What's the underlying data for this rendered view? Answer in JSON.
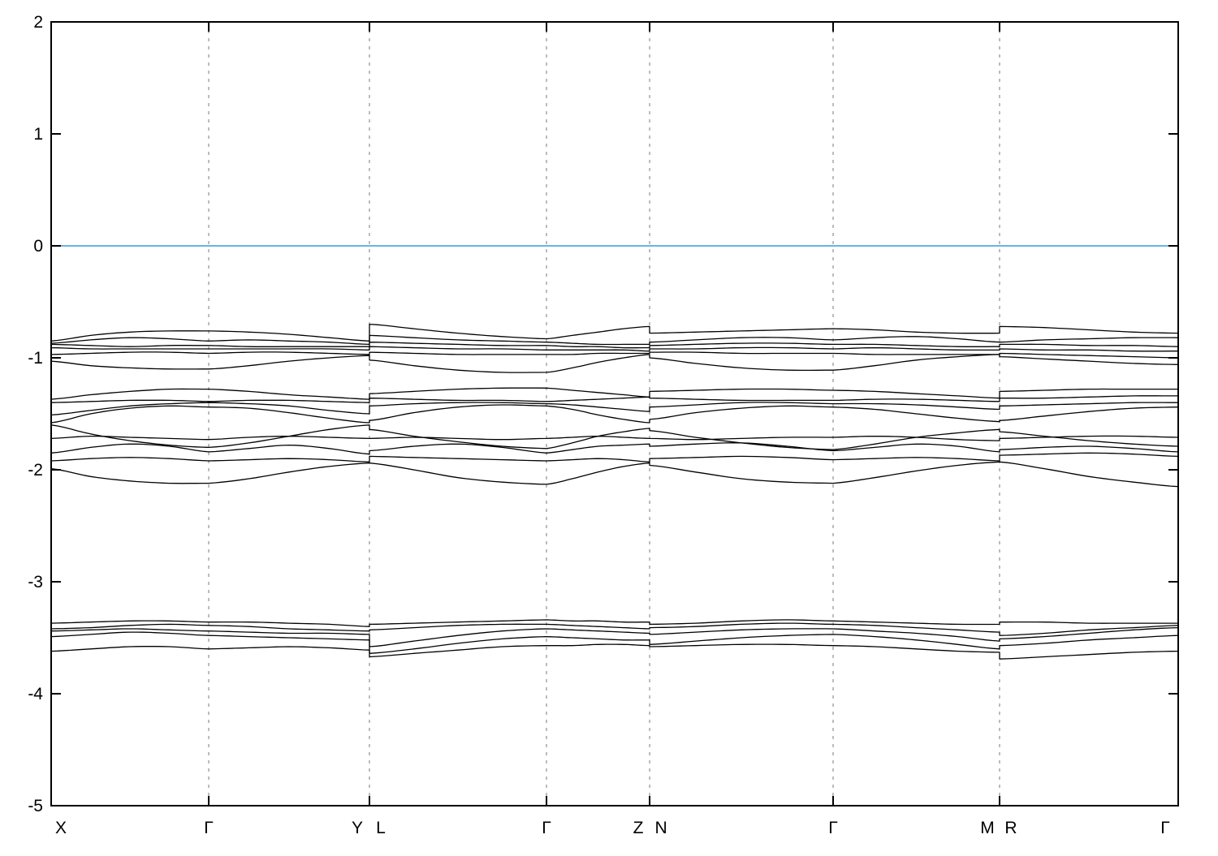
{
  "chart_data": {
    "type": "line",
    "title": "",
    "xlabel": "",
    "ylabel": "",
    "ylim": [
      -5,
      2
    ],
    "yticks": [
      2,
      1,
      0,
      -1,
      -2,
      -3,
      -4,
      -5
    ],
    "grid": "vertical-dashed-at-kpoints",
    "legend": "none",
    "fermi_level": 0,
    "colors": {
      "fermi_line": "#56aadc",
      "band_line": "#000000",
      "grid_line": "#909090",
      "axis": "#000000",
      "background": "#ffffff"
    },
    "node_fracs": [
      0,
      0.1398,
      0.2824,
      0.4395,
      0.531,
      0.6938,
      0.8415,
      1.0
    ],
    "gridline_nodes": [
      1,
      2,
      3,
      4,
      5,
      6
    ],
    "kpoint_labels": [
      {
        "label": "X",
        "node": 0,
        "dx": 12
      },
      {
        "label": "Γ",
        "node": 1,
        "dx": 0
      },
      {
        "label": "Y",
        "node": 2,
        "dx": -15
      },
      {
        "label": "L",
        "node": 2,
        "dx": 14
      },
      {
        "label": "Γ",
        "node": 3,
        "dx": 0
      },
      {
        "label": "Z",
        "node": 4,
        "dx": -14
      },
      {
        "label": "N",
        "node": 4,
        "dx": 14
      },
      {
        "label": "Γ",
        "node": 5,
        "dx": 0
      },
      {
        "label": "M",
        "node": 6,
        "dx": -15
      },
      {
        "label": "R",
        "node": 6,
        "dx": 14
      },
      {
        "label": "Γ",
        "node": 7,
        "dx": -16
      }
    ],
    "bands": [
      {
        "name": "band-01",
        "segments": [
          [
            -0.85,
            -0.8,
            -0.77,
            -0.76,
            -0.76
          ],
          [
            -0.76,
            -0.77,
            -0.79,
            -0.82,
            -0.85
          ],
          [
            -0.7,
            -0.74,
            -0.78,
            -0.81,
            -0.83
          ],
          [
            -0.83,
            -0.8,
            -0.77,
            -0.74,
            -0.72
          ],
          [
            -0.78,
            -0.77,
            -0.76,
            -0.75,
            -0.74
          ],
          [
            -0.74,
            -0.75,
            -0.77,
            -0.78,
            -0.78
          ],
          [
            -0.72,
            -0.73,
            -0.75,
            -0.77,
            -0.78
          ]
        ]
      },
      {
        "name": "band-02",
        "segments": [
          [
            -0.87,
            -0.84,
            -0.82,
            -0.83,
            -0.85
          ],
          [
            -0.85,
            -0.84,
            -0.85,
            -0.86,
            -0.88
          ],
          [
            -0.8,
            -0.82,
            -0.84,
            -0.85,
            -0.86
          ],
          [
            -0.86,
            -0.87,
            -0.88,
            -0.88,
            -0.88
          ],
          [
            -0.86,
            -0.84,
            -0.82,
            -0.82,
            -0.84
          ],
          [
            -0.84,
            -0.82,
            -0.81,
            -0.83,
            -0.86
          ],
          [
            -0.86,
            -0.84,
            -0.83,
            -0.82,
            -0.82
          ]
        ]
      },
      {
        "name": "band-03",
        "segments": [
          [
            -0.88,
            -0.89,
            -0.9,
            -0.89,
            -0.89
          ],
          [
            -0.89,
            -0.9,
            -0.9,
            -0.9,
            -0.9
          ],
          [
            -0.86,
            -0.87,
            -0.88,
            -0.89,
            -0.89
          ],
          [
            -0.89,
            -0.9,
            -0.9,
            -0.91,
            -0.91
          ],
          [
            -0.89,
            -0.88,
            -0.87,
            -0.87,
            -0.88
          ],
          [
            -0.88,
            -0.88,
            -0.89,
            -0.9,
            -0.9
          ],
          [
            -0.88,
            -0.88,
            -0.89,
            -0.89,
            -0.9
          ]
        ]
      },
      {
        "name": "band-04",
        "segments": [
          [
            -0.91,
            -0.92,
            -0.92,
            -0.92,
            -0.92
          ],
          [
            -0.92,
            -0.92,
            -0.92,
            -0.92,
            -0.93
          ],
          [
            -0.9,
            -0.91,
            -0.92,
            -0.92,
            -0.93
          ],
          [
            -0.93,
            -0.93,
            -0.93,
            -0.93,
            -0.94
          ],
          [
            -0.92,
            -0.92,
            -0.91,
            -0.91,
            -0.92
          ],
          [
            -0.92,
            -0.91,
            -0.92,
            -0.93,
            -0.93
          ],
          [
            -0.92,
            -0.93,
            -0.93,
            -0.94,
            -0.94
          ]
        ]
      },
      {
        "name": "band-05",
        "segments": [
          [
            -0.97,
            -0.96,
            -0.95,
            -0.95,
            -0.96
          ],
          [
            -0.96,
            -0.95,
            -0.95,
            -0.96,
            -0.97
          ],
          [
            -0.95,
            -0.96,
            -0.97,
            -0.97,
            -0.97
          ],
          [
            -0.97,
            -0.97,
            -0.96,
            -0.96,
            -0.96
          ],
          [
            -0.95,
            -0.95,
            -0.96,
            -0.96,
            -0.96
          ],
          [
            -0.96,
            -0.97,
            -0.97,
            -0.97,
            -0.97
          ],
          [
            -0.96,
            -0.97,
            -0.98,
            -0.99,
            -1.0
          ]
        ]
      },
      {
        "name": "band-06",
        "segments": [
          [
            -1.03,
            -1.07,
            -1.09,
            -1.1,
            -1.1
          ],
          [
            -1.1,
            -1.07,
            -1.03,
            -1.0,
            -0.98
          ],
          [
            -1.02,
            -1.07,
            -1.11,
            -1.13,
            -1.13
          ],
          [
            -1.13,
            -1.09,
            -1.04,
            -1.0,
            -0.97
          ],
          [
            -1.0,
            -1.05,
            -1.09,
            -1.11,
            -1.11
          ],
          [
            -1.11,
            -1.07,
            -1.02,
            -0.99,
            -0.97
          ],
          [
            -0.99,
            -1.01,
            -1.03,
            -1.05,
            -1.06
          ]
        ]
      },
      {
        "name": "band-07",
        "segments": [
          [
            -1.37,
            -1.33,
            -1.3,
            -1.28,
            -1.28
          ],
          [
            -1.28,
            -1.3,
            -1.33,
            -1.35,
            -1.37
          ],
          [
            -1.32,
            -1.3,
            -1.28,
            -1.27,
            -1.27
          ],
          [
            -1.27,
            -1.29,
            -1.31,
            -1.33,
            -1.35
          ],
          [
            -1.3,
            -1.29,
            -1.28,
            -1.28,
            -1.29
          ],
          [
            -1.29,
            -1.3,
            -1.32,
            -1.34,
            -1.36
          ],
          [
            -1.3,
            -1.29,
            -1.28,
            -1.28,
            -1.28
          ]
        ]
      },
      {
        "name": "band-08",
        "segments": [
          [
            -1.4,
            -1.39,
            -1.38,
            -1.38,
            -1.39
          ],
          [
            -1.39,
            -1.38,
            -1.38,
            -1.39,
            -1.4
          ],
          [
            -1.36,
            -1.37,
            -1.38,
            -1.38,
            -1.39
          ],
          [
            -1.39,
            -1.38,
            -1.37,
            -1.36,
            -1.35
          ],
          [
            -1.36,
            -1.37,
            -1.38,
            -1.38,
            -1.38
          ],
          [
            -1.38,
            -1.37,
            -1.37,
            -1.38,
            -1.39
          ],
          [
            -1.36,
            -1.36,
            -1.35,
            -1.34,
            -1.34
          ]
        ]
      },
      {
        "name": "band-09",
        "segments": [
          [
            -1.51,
            -1.47,
            -1.43,
            -1.41,
            -1.4
          ],
          [
            -1.4,
            -1.41,
            -1.43,
            -1.47,
            -1.5
          ],
          [
            -1.43,
            -1.41,
            -1.4,
            -1.4,
            -1.41
          ],
          [
            -1.41,
            -1.42,
            -1.44,
            -1.46,
            -1.48
          ],
          [
            -1.44,
            -1.42,
            -1.4,
            -1.4,
            -1.41
          ],
          [
            -1.41,
            -1.41,
            -1.42,
            -1.44,
            -1.46
          ],
          [
            -1.43,
            -1.42,
            -1.41,
            -1.4,
            -1.4
          ]
        ]
      },
      {
        "name": "band-10",
        "segments": [
          [
            -1.58,
            -1.5,
            -1.45,
            -1.43,
            -1.44
          ],
          [
            -1.44,
            -1.45,
            -1.49,
            -1.54,
            -1.58
          ],
          [
            -1.56,
            -1.49,
            -1.44,
            -1.42,
            -1.43
          ],
          [
            -1.43,
            -1.46,
            -1.51,
            -1.55,
            -1.58
          ],
          [
            -1.55,
            -1.49,
            -1.45,
            -1.43,
            -1.44
          ],
          [
            -1.44,
            -1.46,
            -1.5,
            -1.54,
            -1.57
          ],
          [
            -1.56,
            -1.52,
            -1.48,
            -1.45,
            -1.44
          ]
        ]
      },
      {
        "name": "band-11",
        "segments": [
          [
            -1.6,
            -1.68,
            -1.74,
            -1.78,
            -1.8
          ],
          [
            -1.8,
            -1.76,
            -1.7,
            -1.64,
            -1.6
          ],
          [
            -1.64,
            -1.7,
            -1.75,
            -1.79,
            -1.81
          ],
          [
            -1.81,
            -1.76,
            -1.7,
            -1.66,
            -1.63
          ],
          [
            -1.65,
            -1.71,
            -1.76,
            -1.8,
            -1.82
          ],
          [
            -1.82,
            -1.77,
            -1.71,
            -1.67,
            -1.64
          ],
          [
            -1.66,
            -1.7,
            -1.74,
            -1.77,
            -1.79
          ]
        ]
      },
      {
        "name": "band-12",
        "segments": [
          [
            -1.72,
            -1.7,
            -1.71,
            -1.72,
            -1.73
          ],
          [
            -1.73,
            -1.71,
            -1.7,
            -1.71,
            -1.72
          ],
          [
            -1.72,
            -1.71,
            -1.72,
            -1.73,
            -1.72
          ],
          [
            -1.72,
            -1.71,
            -1.7,
            -1.71,
            -1.72
          ],
          [
            -1.72,
            -1.73,
            -1.72,
            -1.71,
            -1.71
          ],
          [
            -1.71,
            -1.7,
            -1.71,
            -1.73,
            -1.74
          ],
          [
            -1.72,
            -1.71,
            -1.7,
            -1.7,
            -1.71
          ]
        ]
      },
      {
        "name": "band-13",
        "segments": [
          [
            -1.85,
            -1.8,
            -1.77,
            -1.79,
            -1.84
          ],
          [
            -1.84,
            -1.81,
            -1.78,
            -1.81,
            -1.86
          ],
          [
            -1.83,
            -1.79,
            -1.77,
            -1.8,
            -1.85
          ],
          [
            -1.85,
            -1.82,
            -1.79,
            -1.78,
            -1.77
          ],
          [
            -1.79,
            -1.77,
            -1.76,
            -1.79,
            -1.83
          ],
          [
            -1.83,
            -1.8,
            -1.77,
            -1.79,
            -1.84
          ],
          [
            -1.82,
            -1.8,
            -1.79,
            -1.81,
            -1.84
          ]
        ]
      },
      {
        "name": "band-14",
        "segments": [
          [
            -1.92,
            -1.9,
            -1.89,
            -1.9,
            -1.92
          ],
          [
            -1.92,
            -1.91,
            -1.9,
            -1.91,
            -1.93
          ],
          [
            -1.88,
            -1.89,
            -1.9,
            -1.91,
            -1.92
          ],
          [
            -1.92,
            -1.91,
            -1.9,
            -1.91,
            -1.93
          ],
          [
            -1.9,
            -1.89,
            -1.88,
            -1.89,
            -1.91
          ],
          [
            -1.91,
            -1.9,
            -1.89,
            -1.9,
            -1.92
          ],
          [
            -1.87,
            -1.86,
            -1.85,
            -1.86,
            -1.88
          ]
        ]
      },
      {
        "name": "band-15",
        "segments": [
          [
            -1.99,
            -2.06,
            -2.1,
            -2.12,
            -2.12
          ],
          [
            -2.12,
            -2.08,
            -2.02,
            -1.97,
            -1.94
          ],
          [
            -1.94,
            -2.0,
            -2.07,
            -2.11,
            -2.13
          ],
          [
            -2.13,
            -2.08,
            -2.02,
            -1.97,
            -1.94
          ],
          [
            -1.96,
            -2.02,
            -2.08,
            -2.11,
            -2.12
          ],
          [
            -2.12,
            -2.07,
            -2.01,
            -1.96,
            -1.93
          ],
          [
            -1.93,
            -1.99,
            -2.06,
            -2.11,
            -2.15
          ]
        ]
      },
      {
        "name": "band-16",
        "segments": [
          [
            -3.37,
            -3.36,
            -3.35,
            -3.35,
            -3.36
          ],
          [
            -3.36,
            -3.36,
            -3.37,
            -3.38,
            -3.4
          ],
          [
            -3.38,
            -3.37,
            -3.36,
            -3.35,
            -3.34
          ],
          [
            -3.34,
            -3.35,
            -3.35,
            -3.36,
            -3.36
          ],
          [
            -3.38,
            -3.37,
            -3.35,
            -3.34,
            -3.35
          ],
          [
            -3.35,
            -3.36,
            -3.37,
            -3.38,
            -3.38
          ],
          [
            -3.36,
            -3.36,
            -3.37,
            -3.37,
            -3.37
          ]
        ]
      },
      {
        "name": "band-17",
        "segments": [
          [
            -3.42,
            -3.41,
            -3.39,
            -3.38,
            -3.39
          ],
          [
            -3.39,
            -3.4,
            -3.42,
            -3.43,
            -3.44
          ],
          [
            -3.43,
            -3.41,
            -3.39,
            -3.38,
            -3.38
          ],
          [
            -3.38,
            -3.39,
            -3.4,
            -3.41,
            -3.42
          ],
          [
            -3.41,
            -3.4,
            -3.38,
            -3.37,
            -3.38
          ],
          [
            -3.38,
            -3.39,
            -3.41,
            -3.43,
            -3.45
          ],
          [
            -3.48,
            -3.46,
            -3.43,
            -3.41,
            -3.39
          ]
        ]
      },
      {
        "name": "band-18",
        "segments": [
          [
            -3.44,
            -3.43,
            -3.42,
            -3.43,
            -3.44
          ],
          [
            -3.44,
            -3.45,
            -3.46,
            -3.46,
            -3.47
          ],
          [
            -3.58,
            -3.53,
            -3.48,
            -3.44,
            -3.42
          ],
          [
            -3.42,
            -3.43,
            -3.44,
            -3.45,
            -3.46
          ],
          [
            -3.47,
            -3.45,
            -3.43,
            -3.42,
            -3.42
          ],
          [
            -3.42,
            -3.44,
            -3.46,
            -3.49,
            -3.53
          ],
          [
            -3.51,
            -3.49,
            -3.46,
            -3.43,
            -3.41
          ]
        ]
      },
      {
        "name": "band-19",
        "segments": [
          [
            -3.49,
            -3.47,
            -3.45,
            -3.46,
            -3.48
          ],
          [
            -3.48,
            -3.49,
            -3.5,
            -3.51,
            -3.52
          ],
          [
            -3.64,
            -3.6,
            -3.55,
            -3.51,
            -3.49
          ],
          [
            -3.49,
            -3.5,
            -3.51,
            -3.52,
            -3.52
          ],
          [
            -3.56,
            -3.53,
            -3.5,
            -3.48,
            -3.47
          ],
          [
            -3.47,
            -3.49,
            -3.52,
            -3.56,
            -3.6
          ],
          [
            -3.57,
            -3.55,
            -3.52,
            -3.5,
            -3.48
          ]
        ]
      },
      {
        "name": "band-20",
        "segments": [
          [
            -3.62,
            -3.6,
            -3.58,
            -3.58,
            -3.6
          ],
          [
            -3.6,
            -3.59,
            -3.58,
            -3.59,
            -3.61
          ],
          [
            -3.67,
            -3.64,
            -3.61,
            -3.58,
            -3.57
          ],
          [
            -3.57,
            -3.57,
            -3.56,
            -3.56,
            -3.57
          ],
          [
            -3.58,
            -3.57,
            -3.56,
            -3.56,
            -3.57
          ],
          [
            -3.57,
            -3.58,
            -3.6,
            -3.62,
            -3.63
          ],
          [
            -3.69,
            -3.67,
            -3.65,
            -3.63,
            -3.62
          ]
        ]
      }
    ]
  }
}
